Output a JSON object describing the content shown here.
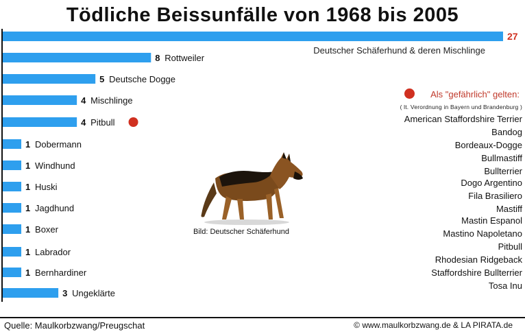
{
  "chart_data": {
    "type": "bar",
    "orientation": "horizontal",
    "title": "Tödliche Beissunfälle von 1968 bis 2005",
    "categories": [
      "Deutscher Schäferhund & deren Mischlinge",
      "Rottweiler",
      "Deutsche Dogge",
      "Mischlinge",
      "Pitbull",
      "Dobermann",
      "Windhund",
      "Huski",
      "Jagdhund",
      "Boxer",
      "Labrador",
      "Bernhardiner",
      "Ungeklärte"
    ],
    "values": [
      27,
      8,
      5,
      4,
      4,
      1,
      1,
      1,
      1,
      1,
      1,
      1,
      3
    ],
    "value_labels": [
      "27",
      "8",
      "5",
      "4",
      "4",
      "1",
      "1",
      "1",
      "1",
      "1",
      "1",
      "1",
      "3"
    ],
    "flagged_categories": [
      "Pitbull"
    ],
    "xlim": [
      0,
      27
    ],
    "bar_color": "#2e9fee",
    "top_value_color": "#d03020",
    "flag_color": "#d03020"
  },
  "legend": {
    "title": "Als \"gefährlich\" gelten:",
    "note": "( lt. Verordnung in Bayern und Brandenburg )",
    "items": [
      "American Staffordshire Terrier",
      "Bandog",
      "Bordeaux-Dogge",
      "Bullmastiff",
      "Bullterrier",
      "Dogo Argentino",
      "Fila Brasiliero",
      "Mastiff",
      "Mastin Espanol",
      "Mastino Napoletano",
      "Pitbull",
      "Rhodesian Ridgeback",
      "Staffordshire Bullterrier",
      "Tosa Inu"
    ]
  },
  "image": {
    "caption": "Bild: Deutscher Schäferhund",
    "icon": "german-shepherd-photo"
  },
  "footer": {
    "source": "Quelle: Maulkorbzwang/Preugschat",
    "copyright": "© www.maulkorbzwang.de & LA PIRATA.de"
  }
}
